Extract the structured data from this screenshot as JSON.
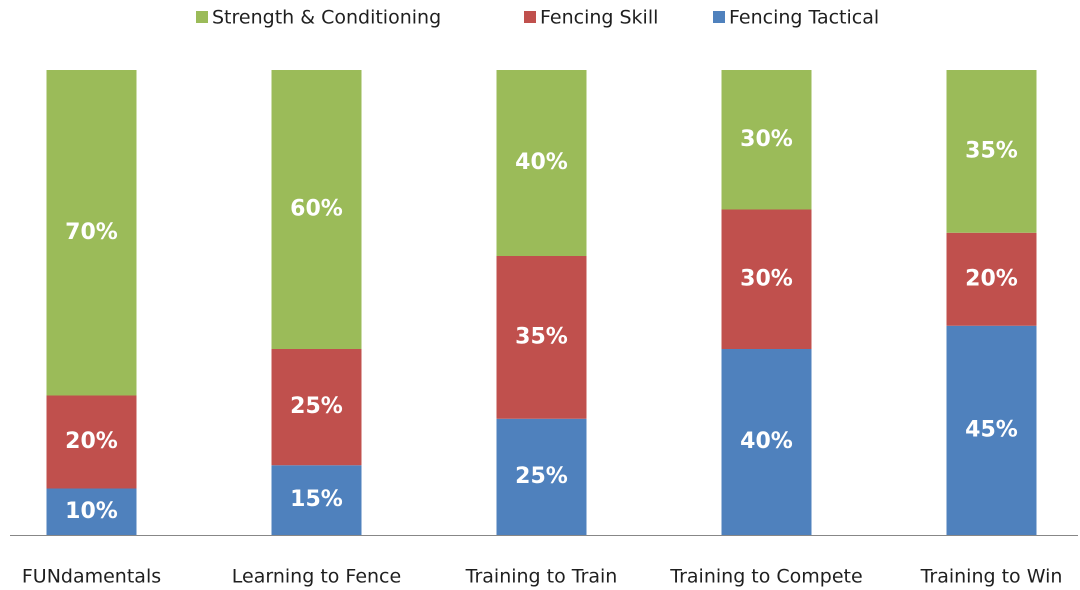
{
  "chart_data": {
    "type": "stacked-bar",
    "categories": [
      "FUNdamentals",
      "Learning to Fence",
      "Training to Train",
      "Training to Compete",
      "Training to Win"
    ],
    "series": [
      {
        "name": "Strength & Conditioning",
        "color": "#9bbb59",
        "values": [
          70,
          60,
          40,
          30,
          35
        ],
        "value_labels": [
          "70%",
          "60%",
          "40%",
          "30%",
          "35%"
        ]
      },
      {
        "name": "Fencing Skill",
        "color": "#c0504d",
        "values": [
          20,
          25,
          35,
          30,
          20
        ],
        "value_labels": [
          "20%",
          "25%",
          "35%",
          "30%",
          "20%"
        ]
      },
      {
        "name": "Fencing Tactical",
        "color": "#4f81bd",
        "values": [
          10,
          15,
          25,
          40,
          45
        ],
        "value_labels": [
          "10%",
          "15%",
          "25%",
          "40%",
          "45%"
        ]
      }
    ],
    "ylim": [
      0,
      100
    ],
    "legend": "top"
  }
}
